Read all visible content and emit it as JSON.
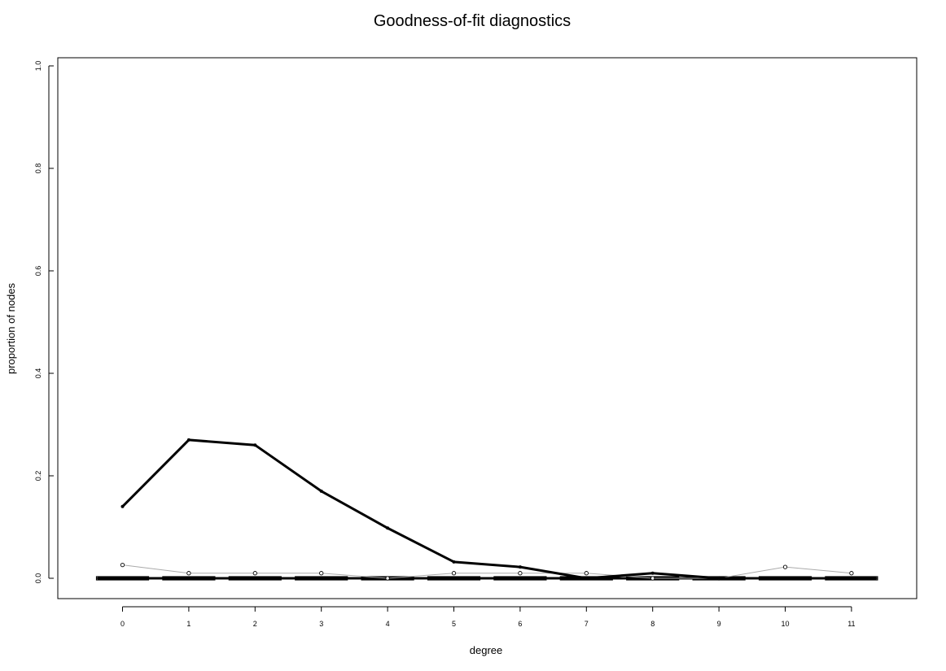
{
  "chart_data": {
    "type": "line",
    "title": "Goodness-of-fit diagnostics",
    "xlabel": "degree",
    "ylabel": "proportion of nodes",
    "x": [
      0,
      1,
      2,
      3,
      4,
      5,
      6,
      7,
      8,
      9,
      10,
      11
    ],
    "x_tick_labels": [
      "0",
      "1",
      "2",
      "3",
      "4",
      "5",
      "6",
      "7",
      "8",
      "9",
      "10",
      "11"
    ],
    "y_ticks": [
      0.0,
      0.2,
      0.4,
      0.6,
      0.8,
      1.0
    ],
    "y_tick_labels": [
      "0.0",
      "0.2",
      "0.4",
      "0.6",
      "0.8",
      "1.0"
    ],
    "xlim": [
      -0.5,
      11.5
    ],
    "ylim": [
      0,
      1.0
    ],
    "grid": false,
    "series": [
      {
        "style": "thick-solid",
        "values": [
          0.14,
          0.27,
          0.26,
          0.17,
          0.098,
          0.032,
          0.022,
          0.0,
          0.01,
          0.0,
          0.0,
          0.0
        ]
      },
      {
        "style": "thin-gray-with-open-circles",
        "values": [
          0.026,
          0.01,
          0.01,
          0.01,
          0.0,
          0.01,
          0.01,
          0.01,
          0.0,
          0.0,
          0.022,
          0.01
        ]
      },
      {
        "style": "box-bars",
        "values": [
          0.0,
          0.0,
          0.0,
          0.0,
          0.0,
          0.0,
          0.0,
          0.0,
          0.0,
          0.0,
          0.0,
          0.0
        ]
      }
    ]
  }
}
